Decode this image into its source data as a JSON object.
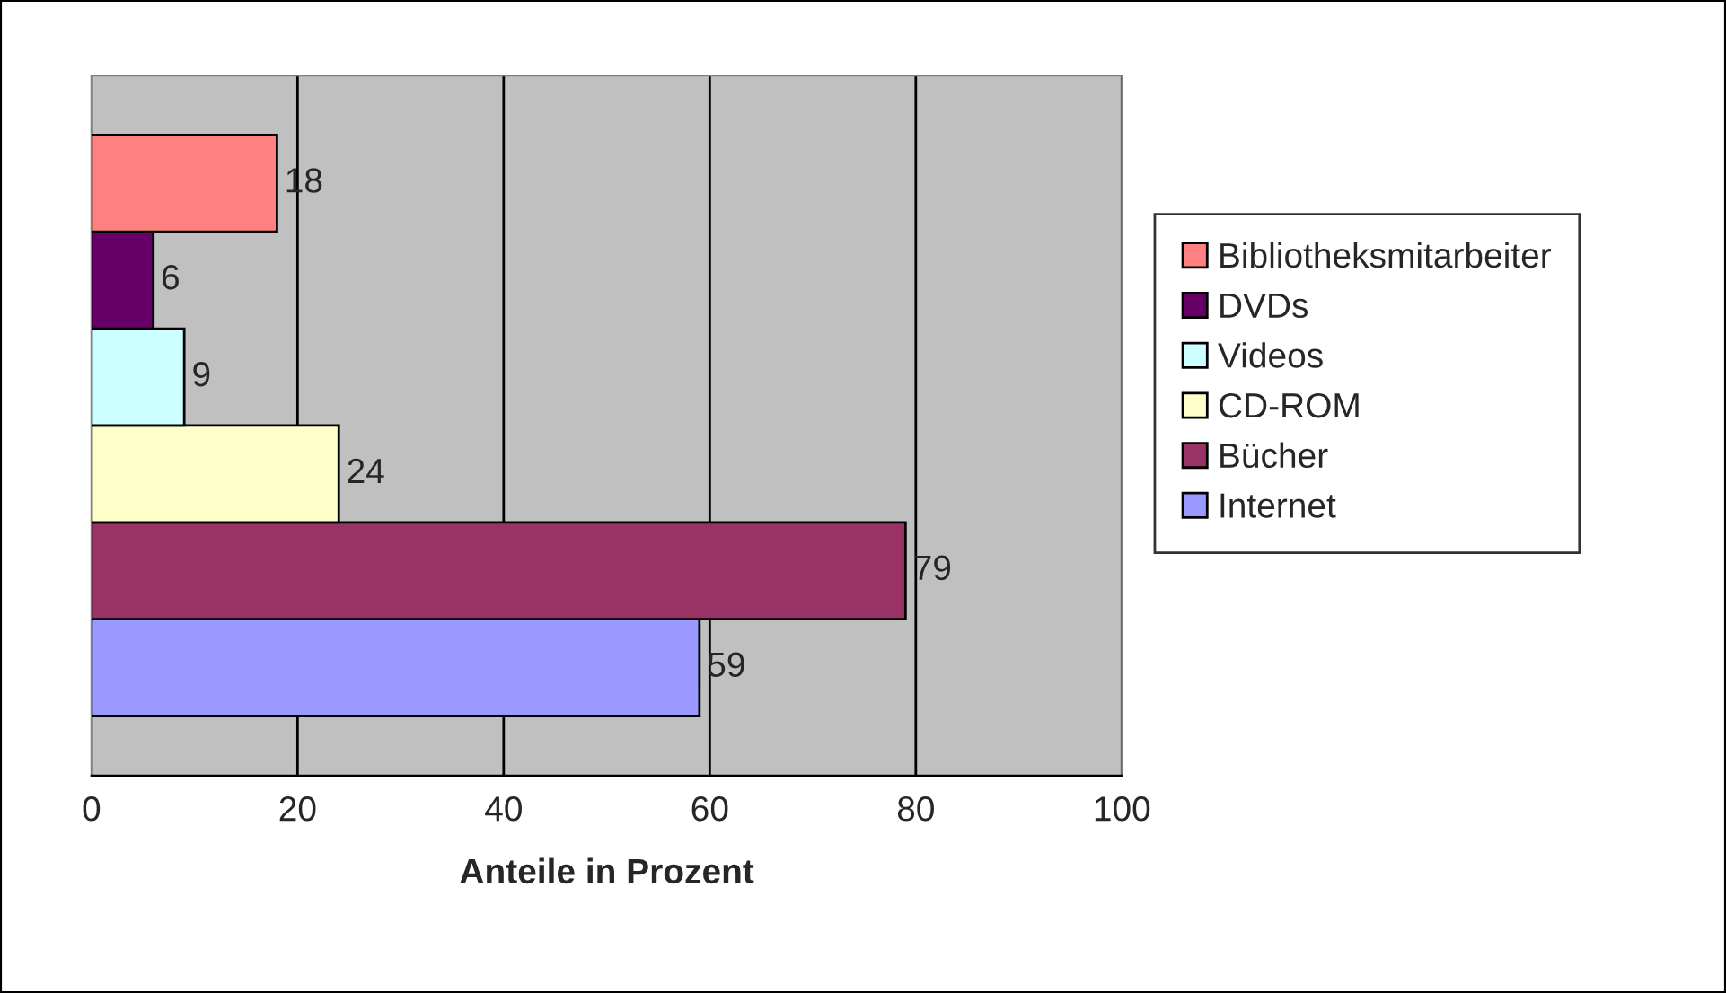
{
  "chart_data": {
    "type": "bar",
    "orientation": "horizontal",
    "xlabel": "Anteile in Prozent",
    "categories": [
      null
    ],
    "series": [
      {
        "name": "Internet",
        "color": "#9999ff",
        "values": [
          59
        ]
      },
      {
        "name": "Bücher",
        "color": "#993366",
        "values": [
          79
        ]
      },
      {
        "name": "CD-ROM",
        "color": "#ffffcc",
        "values": [
          24
        ]
      },
      {
        "name": "Videos",
        "color": "#ccffff",
        "values": [
          9
        ]
      },
      {
        "name": "DVDs",
        "color": "#660066",
        "values": [
          6
        ]
      },
      {
        "name": "Bibliotheksmitarbeiter",
        "color": "#ff8080",
        "values": [
          18
        ]
      }
    ],
    "xlim": [
      0,
      100
    ],
    "xticks": [
      0,
      20,
      40,
      60,
      80,
      100
    ],
    "data_labels": true,
    "grid": "x",
    "legend": "right"
  }
}
